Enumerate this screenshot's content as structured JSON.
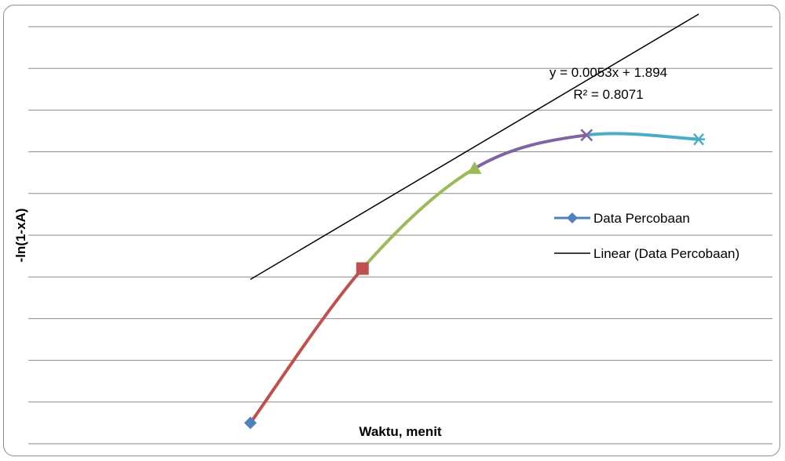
{
  "chart_data": {
    "type": "line",
    "title": "",
    "xlabel": "Waktu, menit",
    "ylabel": "-ln(1-xA)",
    "grid": true,
    "legend_position": "right",
    "series": [
      {
        "name": "Data Percobaan",
        "points": [
          {
            "x": 0,
            "y": 1.55
          },
          {
            "x": 30,
            "y": 1.92
          },
          {
            "x": 60,
            "y": 2.16
          },
          {
            "x": 90,
            "y": 2.24
          },
          {
            "x": 120,
            "y": 2.23
          }
        ],
        "segment_colors": [
          "#c0504d",
          "#9bbb59",
          "#8064a2",
          "#4bacc6"
        ],
        "marker_colors": [
          "#4f81bd",
          "#c0504d",
          "#9bbb59",
          "#8064a2",
          "#4bacc6"
        ],
        "markers": [
          "diamond",
          "square",
          "triangle",
          "x",
          "star"
        ],
        "legend_color": "#4f81bd"
      }
    ],
    "trendline": {
      "name": "Linear (Data Percobaan)",
      "color": "#000000",
      "equation": "y = 0.0053x + 1.894",
      "r2": "R² = 0.8071"
    },
    "xlim": [
      0,
      120
    ],
    "ylim": [
      1.5,
      2.5
    ],
    "gridline_count": 10
  }
}
